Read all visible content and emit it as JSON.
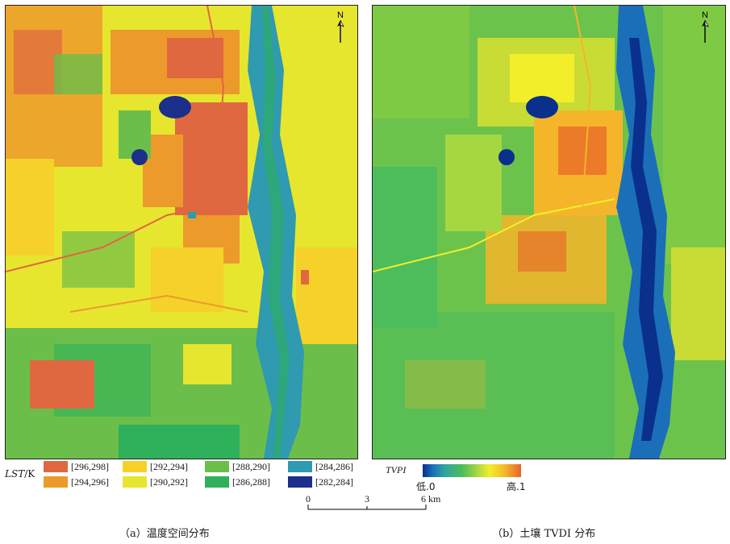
{
  "map_a": {
    "north_label": "N",
    "legend_title_var": "LST",
    "legend_title_unit": "/K",
    "legend_items": [
      {
        "label": "[296,298]",
        "color": "#e06840"
      },
      {
        "label": "[292,294]",
        "color": "#f5d12a"
      },
      {
        "label": "[288,290]",
        "color": "#6cbe4a"
      },
      {
        "label": "[284,286]",
        "color": "#2f9ab0"
      },
      {
        "label": "[294,296]",
        "color": "#ec9a2c"
      },
      {
        "label": "[290,292]",
        "color": "#e6e62e"
      },
      {
        "label": "[286,288]",
        "color": "#2fb05a"
      },
      {
        "label": "[282,284]",
        "color": "#1c2f8a"
      }
    ],
    "caption": "（a）温度空间分布"
  },
  "map_b": {
    "north_label": "N",
    "legend_title": "TVPI",
    "legend_low": "低.0",
    "legend_high": "高.1",
    "gradient_colors": [
      "#0a2f8c",
      "#2fa3a0",
      "#4cbd5a",
      "#f2ef2a",
      "#e8622a"
    ],
    "caption": "（b）土壤 TVDI 分布"
  },
  "scale_bar": {
    "tick_0": "0",
    "tick_1": "3",
    "tick_2": "6 km"
  }
}
